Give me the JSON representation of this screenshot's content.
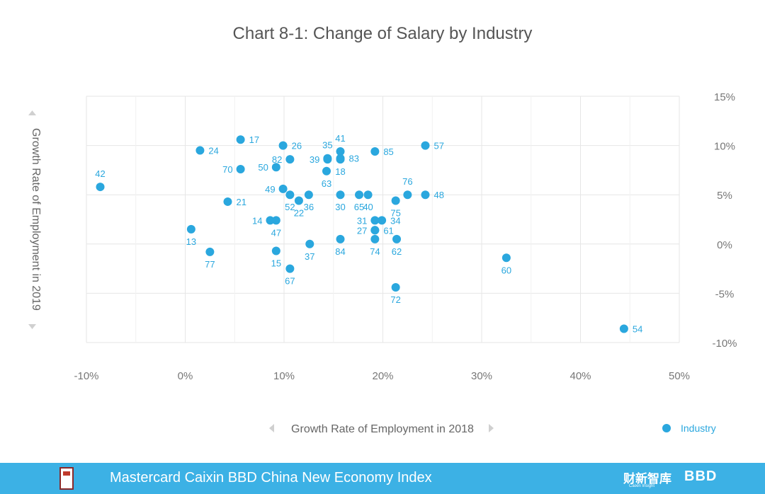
{
  "chart_data": {
    "type": "scatter",
    "title": "Chart 8-1: Change of Salary by Industry",
    "xlabel": "Growth Rate of Employment in 2018",
    "ylabel": "Growth Rate of Employment in 2019",
    "xlim": [
      -10,
      50
    ],
    "ylim": [
      -10,
      15
    ],
    "xticks": [
      -10,
      0,
      10,
      20,
      30,
      40,
      50
    ],
    "yticks": [
      -10,
      -5,
      0,
      5,
      10,
      15
    ],
    "x_tick_labels": [
      "-10%",
      "0%",
      "10%",
      "20%",
      "30%",
      "40%",
      "50%"
    ],
    "y_tick_labels": [
      "-10%",
      "-5%",
      "0%",
      "5%",
      "10%",
      "15%"
    ],
    "legend": "bottom-right",
    "series": [
      {
        "name": "Industry",
        "color": "#2aa7de",
        "points": [
          {
            "label": "42",
            "x": -8.6,
            "y": 5.8,
            "pos": "above"
          },
          {
            "label": "17",
            "x": 5.6,
            "y": 10.6,
            "pos": "right"
          },
          {
            "label": "24",
            "x": 1.5,
            "y": 9.5,
            "pos": "right"
          },
          {
            "label": "26",
            "x": 9.9,
            "y": 10.0,
            "pos": "right"
          },
          {
            "label": "82",
            "x": 10.6,
            "y": 8.6,
            "pos": "left"
          },
          {
            "label": "70",
            "x": 5.6,
            "y": 7.6,
            "pos": "left"
          },
          {
            "label": "50",
            "x": 9.2,
            "y": 7.8,
            "pos": "left"
          },
          {
            "label": "41",
            "x": 15.7,
            "y": 9.4,
            "pos": "above"
          },
          {
            "label": "35",
            "x": 14.4,
            "y": 8.7,
            "pos": "above"
          },
          {
            "label": "83",
            "x": 15.7,
            "y": 8.7,
            "pos": "right"
          },
          {
            "label": "39",
            "x": 14.4,
            "y": 8.6,
            "pos": "left"
          },
          {
            "label": "18",
            "x": 15.7,
            "y": 8.6,
            "pos": "below"
          },
          {
            "label": "63",
            "x": 14.3,
            "y": 7.4,
            "pos": "below"
          },
          {
            "label": "85",
            "x": 19.2,
            "y": 9.4,
            "pos": "right"
          },
          {
            "label": "57",
            "x": 24.3,
            "y": 10.0,
            "pos": "right"
          },
          {
            "label": "49",
            "x": 9.9,
            "y": 5.6,
            "pos": "left"
          },
          {
            "label": "52",
            "x": 10.6,
            "y": 5.0,
            "pos": "below"
          },
          {
            "label": "36",
            "x": 12.5,
            "y": 5.0,
            "pos": "below"
          },
          {
            "label": "30",
            "x": 15.7,
            "y": 5.0,
            "pos": "below"
          },
          {
            "label": "65",
            "x": 17.6,
            "y": 5.0,
            "pos": "below"
          },
          {
            "label": "40",
            "x": 18.5,
            "y": 5.0,
            "pos": "below"
          },
          {
            "label": "76",
            "x": 22.5,
            "y": 5.0,
            "pos": "above"
          },
          {
            "label": "48",
            "x": 24.3,
            "y": 5.0,
            "pos": "right"
          },
          {
            "label": "22",
            "x": 11.5,
            "y": 4.4,
            "pos": "below"
          },
          {
            "label": "75",
            "x": 21.3,
            "y": 4.4,
            "pos": "below"
          },
          {
            "label": "21",
            "x": 4.3,
            "y": 4.3,
            "pos": "right"
          },
          {
            "label": "14",
            "x": 8.6,
            "y": 2.4,
            "pos": "left"
          },
          {
            "label": "47",
            "x": 9.2,
            "y": 2.4,
            "pos": "below"
          },
          {
            "label": "31",
            "x": 19.2,
            "y": 2.4,
            "pos": "left"
          },
          {
            "label": "34",
            "x": 19.9,
            "y": 2.4,
            "pos": "right"
          },
          {
            "label": "27",
            "x": 19.2,
            "y": 1.4,
            "pos": "left"
          },
          {
            "label": "61",
            "x": 19.2,
            "y": 1.4,
            "pos": "right"
          },
          {
            "label": "13",
            "x": 0.6,
            "y": 1.5,
            "pos": "below"
          },
          {
            "label": "84",
            "x": 15.7,
            "y": 0.5,
            "pos": "below"
          },
          {
            "label": "74",
            "x": 19.2,
            "y": 0.5,
            "pos": "below"
          },
          {
            "label": "62",
            "x": 21.4,
            "y": 0.5,
            "pos": "below"
          },
          {
            "label": "37",
            "x": 12.6,
            "y": 0.0,
            "pos": "below"
          },
          {
            "label": "77",
            "x": 2.5,
            "y": -0.8,
            "pos": "below"
          },
          {
            "label": "15",
            "x": 9.2,
            "y": -0.7,
            "pos": "below"
          },
          {
            "label": "67",
            "x": 10.6,
            "y": -2.5,
            "pos": "below"
          },
          {
            "label": "60",
            "x": 32.5,
            "y": -1.4,
            "pos": "below"
          },
          {
            "label": "72",
            "x": 21.3,
            "y": -4.4,
            "pos": "below"
          },
          {
            "label": "54",
            "x": 44.4,
            "y": -8.6,
            "pos": "right"
          }
        ]
      }
    ]
  },
  "footer": {
    "text": "Mastercard Caixin BBD China New Economy Index",
    "brand_cn": "财新智库",
    "brand_cn_sub": "Caixin Insight",
    "brand_bbd": "BBD"
  }
}
